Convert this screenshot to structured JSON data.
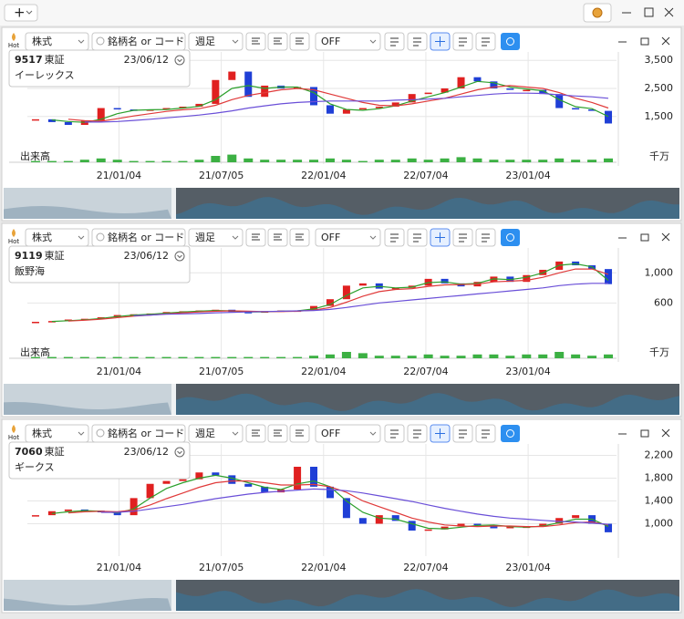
{
  "top_bar": {
    "add_button": "+"
  },
  "panels": [
    {
      "toolbar": {
        "hot_label": "Hot",
        "asset_type": "株式",
        "search_placeholder": "銘柄名 or コード",
        "period": "週足",
        "indicator": "OFF"
      },
      "info": {
        "code": "9517",
        "market": "東証",
        "date": "23/06/12",
        "name": "イーレックス"
      },
      "chart_data": {
        "type": "candlestick",
        "up_color": "#e02020",
        "down_color": "#1f3fd6",
        "grid": true,
        "xlim": [
          -0.5,
          35.5
        ],
        "xticks": [
          {
            "value": 5.1,
            "label": "21/01/04"
          },
          {
            "value": 11.35,
            "label": "21/07/05"
          },
          {
            "value": 17.6,
            "label": "22/01/04"
          },
          {
            "value": 23.85,
            "label": "22/07/04"
          },
          {
            "value": 30.1,
            "label": "23/01/04"
          }
        ],
        "ylim": [
          550,
          3800
        ],
        "yticks": [
          {
            "value": 3500,
            "label": "3,500"
          },
          {
            "value": 2500,
            "label": "2,500"
          },
          {
            "value": 1500,
            "label": "1,500"
          }
        ],
        "close": [
          1400,
          1300,
          1200,
          1350,
          1800,
          1750,
          1700,
          1750,
          1800,
          1850,
          1950,
          2800,
          3100,
          2200,
          2600,
          2500,
          2550,
          1900,
          1600,
          1750,
          1800,
          1850,
          2000,
          2300,
          2350,
          2500,
          2900,
          2750,
          2500,
          2450,
          2450,
          2300,
          1800,
          1750,
          1700,
          1250
        ],
        "moving_averages": [
          {
            "color": "#2ca02c",
            "values": [
              null,
              1380,
              1320,
              1290,
              1400,
              1600,
              1720,
              1740,
              1750,
              1800,
              1860,
              2100,
              2500,
              2600,
              2500,
              2550,
              2550,
              2350,
              1950,
              1750,
              1720,
              1780,
              1880,
              2050,
              2200,
              2350,
              2550,
              2750,
              2700,
              2550,
              2480,
              2420,
              2100,
              1850,
              1780,
              1500
            ]
          },
          {
            "color": "#e03a3a",
            "values": [
              null,
              null,
              1400,
              1350,
              1330,
              1420,
              1520,
              1600,
              1680,
              1740,
              1780,
              1900,
              2100,
              2250,
              2350,
              2450,
              2500,
              2450,
              2300,
              2150,
              2000,
              1900,
              1880,
              1950,
              2050,
              2150,
              2300,
              2450,
              2550,
              2600,
              2550,
              2500,
              2350,
              2150,
              2000,
              1800
            ]
          },
          {
            "color": "#6a4fd8",
            "values": [
              null,
              null,
              null,
              1300,
              1300,
              1320,
              1360,
              1400,
              1450,
              1500,
              1550,
              1620,
              1700,
              1800,
              1880,
              1950,
              2000,
              2030,
              2050,
              2050,
              2050,
              2050,
              2080,
              2100,
              2120,
              2150,
              2200,
              2250,
              2300,
              2330,
              2330,
              2320,
              2270,
              2230,
              2200,
              2150
            ]
          }
        ],
        "volume": {
          "label": "出来高",
          "unit": "千万",
          "color": "#3cb043",
          "ylim": [
            0,
            10
          ],
          "values": [
            1,
            1,
            1,
            2,
            3,
            2,
            1,
            1,
            1,
            1,
            2,
            5,
            6,
            3,
            2,
            2,
            2,
            2,
            3,
            2,
            1,
            2,
            2,
            3,
            2,
            3,
            4,
            3,
            2,
            2,
            2,
            2,
            3,
            2,
            2,
            3
          ]
        }
      }
    },
    {
      "toolbar": {
        "hot_label": "Hot",
        "asset_type": "株式",
        "search_placeholder": "銘柄名 or コード",
        "period": "週足",
        "indicator": "OFF"
      },
      "info": {
        "code": "9119",
        "market": "東証",
        "date": "23/06/12",
        "name": "飯野海"
      },
      "chart_data": {
        "type": "candlestick",
        "up_color": "#e02020",
        "down_color": "#1f3fd6",
        "grid": true,
        "xlim": [
          -0.5,
          35.5
        ],
        "xticks": [
          {
            "value": 5.1,
            "label": "21/01/04"
          },
          {
            "value": 11.35,
            "label": "21/07/05"
          },
          {
            "value": 17.6,
            "label": "22/01/04"
          },
          {
            "value": 23.85,
            "label": "22/07/04"
          },
          {
            "value": 30.1,
            "label": "23/01/04"
          }
        ],
        "ylim": [
          120,
          1330
        ],
        "yticks": [
          {
            "value": 1000,
            "label": "1,000"
          },
          600
        ],
        "close": [
          350,
          360,
          380,
          390,
          410,
          440,
          450,
          460,
          480,
          490,
          500,
          510,
          480,
          470,
          490,
          500,
          500,
          560,
          650,
          830,
          860,
          790,
          800,
          830,
          920,
          860,
          820,
          880,
          950,
          880,
          970,
          1040,
          1150,
          1100,
          1050,
          850
        ],
        "moving_averages": [
          {
            "color": "#2ca02c",
            "values": [
              null,
              355,
              365,
              375,
              395,
              420,
              440,
              450,
              465,
              480,
              490,
              500,
              495,
              480,
              480,
              490,
              495,
              520,
              580,
              700,
              800,
              820,
              800,
              810,
              870,
              880,
              850,
              860,
              920,
              910,
              940,
              1000,
              1100,
              1120,
              1080,
              900
            ]
          },
          {
            "color": "#e03a3a",
            "values": [
              null,
              null,
              360,
              370,
              385,
              405,
              425,
              440,
              455,
              470,
              480,
              490,
              495,
              490,
              485,
              485,
              490,
              505,
              540,
              610,
              690,
              750,
              780,
              790,
              820,
              840,
              845,
              850,
              880,
              890,
              900,
              940,
              1000,
              1050,
              1050,
              980
            ]
          },
          {
            "color": "#6a4fd8",
            "values": [
              null,
              null,
              null,
              null,
              null,
              null,
              430,
              440,
              450,
              455,
              460,
              470,
              475,
              480,
              485,
              490,
              495,
              500,
              515,
              540,
              570,
              600,
              620,
              640,
              660,
              680,
              700,
              720,
              740,
              760,
              780,
              800,
              830,
              850,
              860,
              860
            ]
          }
        ],
        "volume": {
          "label": "出来高",
          "unit": "千万",
          "color": "#3cb043",
          "ylim": [
            0,
            10
          ],
          "values": [
            1,
            1,
            1,
            1,
            1,
            1,
            1,
            1,
            1,
            1,
            1,
            1,
            1,
            1,
            1,
            1,
            1,
            2,
            3,
            5,
            4,
            2,
            2,
            2,
            3,
            2,
            2,
            3,
            3,
            2,
            3,
            3,
            5,
            3,
            2,
            3
          ]
        }
      }
    },
    {
      "toolbar": {
        "hot_label": "Hot",
        "asset_type": "株式",
        "search_placeholder": "銘柄名 or コード",
        "period": "週足",
        "indicator": "OFF"
      },
      "info": {
        "code": "7060",
        "market": "東証",
        "date": "23/06/12",
        "name": "ギークス"
      },
      "chart_data": {
        "type": "candlestick",
        "up_color": "#e02020",
        "down_color": "#1f3fd6",
        "grid": true,
        "xlim": [
          -0.5,
          35.5
        ],
        "xticks": [
          {
            "value": 5.1,
            "label": "21/01/04"
          },
          {
            "value": 11.35,
            "label": "21/07/05"
          },
          {
            "value": 17.6,
            "label": "22/01/04"
          },
          {
            "value": 23.85,
            "label": "22/07/04"
          },
          {
            "value": 30.1,
            "label": "23/01/04"
          }
        ],
        "ylim": [
          800,
          2400
        ],
        "yticks": [
          {
            "value": 2200,
            "label": "2,200"
          },
          {
            "value": 1800,
            "label": "1,800"
          },
          {
            "value": 1400,
            "label": "1,400"
          },
          {
            "value": 1000,
            "label": "1,000"
          }
        ],
        "close": [
          1150,
          1220,
          1250,
          1230,
          1200,
          1150,
          1450,
          1700,
          1750,
          1780,
          1900,
          1850,
          1700,
          1650,
          1550,
          1600,
          2000,
          1650,
          1450,
          1100,
          1000,
          1150,
          1050,
          880,
          900,
          950,
          1000,
          980,
          920,
          950,
          950,
          1000,
          1100,
          1150,
          1000,
          850
        ],
        "moving_averages": [
          {
            "color": "#2ca02c",
            "values": [
              null,
              1180,
              1210,
              1230,
              1220,
              1190,
              1260,
              1450,
              1620,
              1720,
              1800,
              1850,
              1800,
              1720,
              1640,
              1600,
              1700,
              1750,
              1650,
              1400,
              1200,
              1100,
              1080,
              1000,
              920,
              910,
              940,
              970,
              980,
              950,
              940,
              960,
              1020,
              1080,
              1080,
              950
            ]
          },
          {
            "color": "#e03a3a",
            "values": [
              null,
              null,
              1190,
              1210,
              1220,
              1210,
              1240,
              1330,
              1440,
              1540,
              1640,
              1720,
              1750,
              1750,
              1720,
              1680,
              1680,
              1690,
              1650,
              1550,
              1400,
              1300,
              1200,
              1100,
              1030,
              980,
              960,
              950,
              960,
              960,
              950,
              950,
              980,
              1020,
              1030,
              980
            ]
          },
          {
            "color": "#6a4fd8",
            "values": [
              null,
              null,
              null,
              null,
              1200,
              1200,
              1220,
              1260,
              1300,
              1340,
              1390,
              1440,
              1480,
              1520,
              1550,
              1570,
              1590,
              1610,
              1600,
              1580,
              1540,
              1490,
              1440,
              1390,
              1330,
              1270,
              1220,
              1170,
              1130,
              1100,
              1080,
              1060,
              1040,
              1030,
              1010,
              990
            ]
          }
        ]
      }
    }
  ]
}
